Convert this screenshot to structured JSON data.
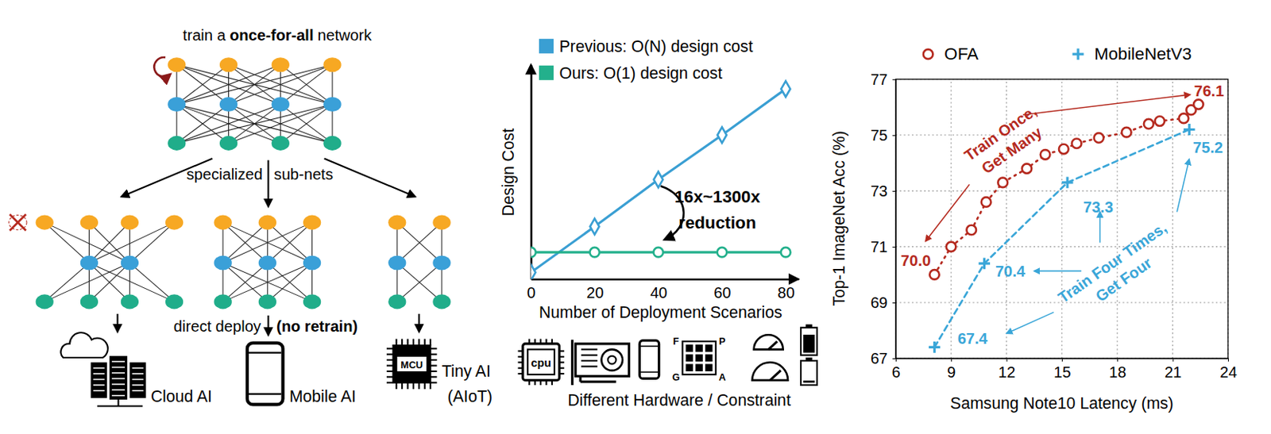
{
  "diagram": {
    "title": {
      "before": "train a",
      "bold": "once-for-all",
      "after": "network"
    },
    "branch_label": [
      "specialized",
      "sub-nets"
    ],
    "deploy_label": {
      "text": "direct deploy",
      "bold": "(no retrain)"
    },
    "targets": [
      {
        "lines": [
          "Cloud AI"
        ]
      },
      {
        "lines": [
          "Mobile AI"
        ]
      },
      {
        "lines": [
          "Tiny AI",
          "(AIoT)"
        ]
      }
    ],
    "mcu_label": "MCU",
    "hardware": {
      "cpu_label": "cpu",
      "fpga_labels": [
        "F",
        "P",
        "G",
        "A"
      ],
      "caption": "Different Hardware / Constraint"
    }
  },
  "chart_data": [
    {
      "type": "line",
      "x": [
        0,
        20,
        40,
        60,
        80
      ],
      "xlim": [
        0,
        84
      ],
      "xticks": [
        0,
        20,
        40,
        60,
        80
      ],
      "ylim": [
        0,
        100
      ],
      "tick_labels": "x",
      "xlabel": "Number of Deployment Scenarios",
      "ylabel": "Design Cost",
      "legend": "upper left",
      "annotations": [
        "16x~1300x",
        "reduction"
      ],
      "series": [
        {
          "name": "Previous: O(N) design cost",
          "color": "#3a9fd3",
          "marker": "diamond",
          "values": [
            3.1,
            24.5,
            46.4,
            67.2,
            88.7
          ]
        },
        {
          "name": "Ours: O(1) design cost",
          "color": "#23b08c",
          "marker": "circle",
          "values": [
            12.5,
            12.5,
            12.5,
            12.5,
            12.5
          ]
        }
      ]
    },
    {
      "type": "line",
      "xlim": [
        6,
        24
      ],
      "xticks": [
        6,
        9,
        12,
        15,
        18,
        21,
        24
      ],
      "ylim": [
        67,
        77
      ],
      "yticks": [
        67,
        69,
        71,
        73,
        75,
        77
      ],
      "grid": true,
      "xlabel": "Samsung Note10 Latency (ms)",
      "ylabel": "Top-1 ImageNet Acc (%)",
      "legend": "top",
      "data_labels": true,
      "annotations": [
        {
          "lines": [
            "Train Once,",
            "Get Many"
          ],
          "color": "#b52a1f"
        },
        {
          "lines": [
            "Train Four Times,",
            "Get Four"
          ],
          "color": "#3aa6d8"
        }
      ],
      "series": [
        {
          "name": "OFA",
          "color": "#b52a1f",
          "marker": "circle",
          "line_style": "dotted",
          "x": [
            8.1,
            9.0,
            10.1,
            10.9,
            11.8,
            13.1,
            14.1,
            15.1,
            15.8,
            17.0,
            18.5,
            19.7,
            20.3,
            21.6,
            22.0,
            22.4
          ],
          "values": [
            70.0,
            71.0,
            71.6,
            72.6,
            73.3,
            73.8,
            74.3,
            74.5,
            74.7,
            74.9,
            75.1,
            75.4,
            75.5,
            75.6,
            75.9,
            76.1
          ],
          "value_labels": [
            "70.0",
            null,
            null,
            null,
            null,
            null,
            null,
            null,
            null,
            null,
            null,
            null,
            null,
            null,
            null,
            "76.1"
          ]
        },
        {
          "name": "MobileNetV3",
          "color": "#3aa6d8",
          "marker": "plus",
          "line_style": "dashed",
          "x": [
            8.1,
            10.8,
            15.3,
            21.9
          ],
          "values": [
            67.4,
            70.4,
            73.3,
            75.2
          ],
          "value_labels": [
            "67.4",
            "70.4",
            "73.3",
            "75.2"
          ]
        }
      ]
    }
  ]
}
